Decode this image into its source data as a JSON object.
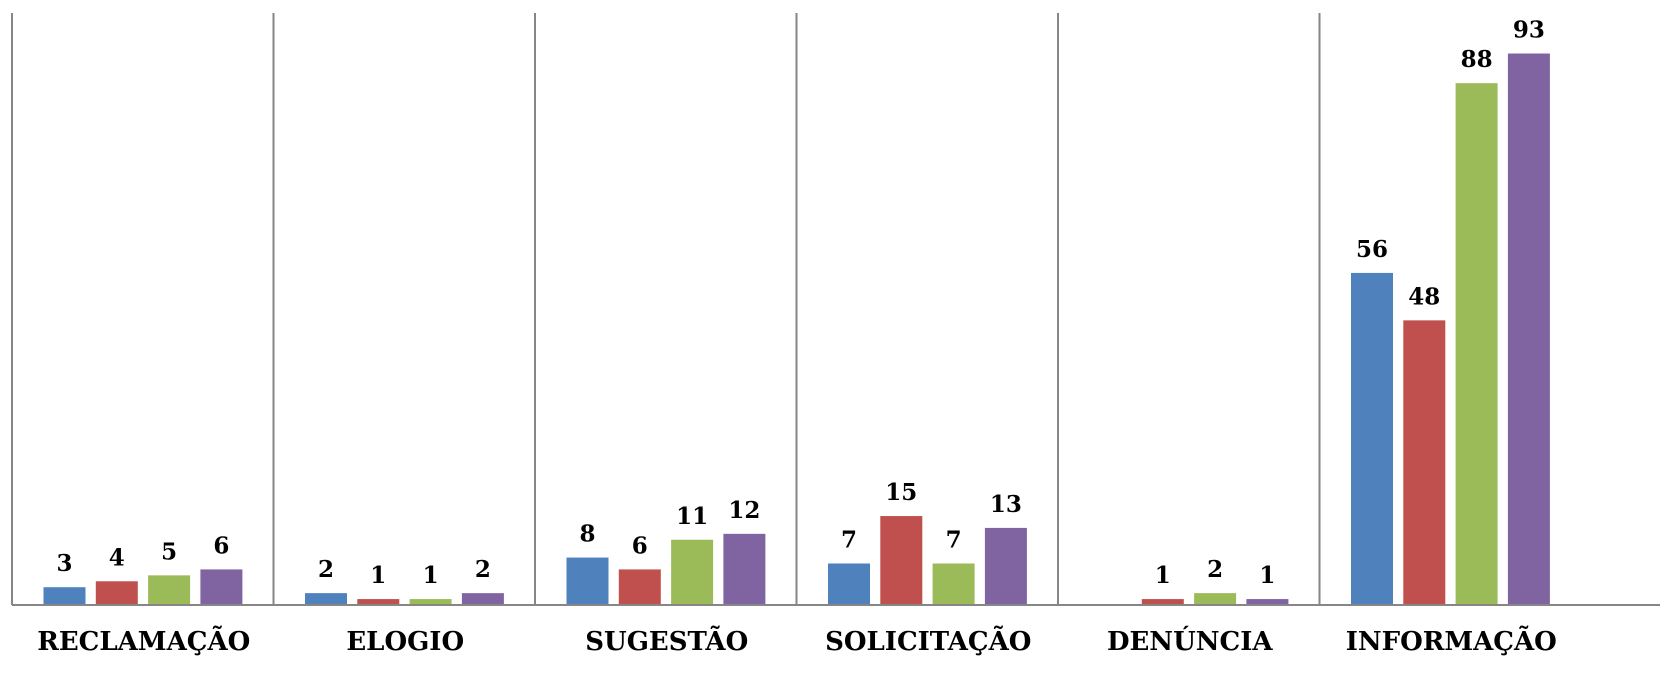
{
  "chart_data": {
    "type": "bar",
    "title": "",
    "xlabel": "",
    "ylabel": "",
    "categories": [
      "RECLAMAÇÃO",
      "ELOGIO",
      "SUGESTÃO",
      "SOLICITAÇÃO",
      "DENÚNCIA",
      "INFORMAÇÃO"
    ],
    "series": [
      {
        "color": "#4F81BD",
        "values": [
          3,
          2,
          8,
          7,
          null,
          56
        ]
      },
      {
        "color": "#C0504D",
        "values": [
          4,
          1,
          6,
          15,
          1,
          48
        ]
      },
      {
        "color": "#9BBB59",
        "values": [
          5,
          1,
          11,
          7,
          2,
          88
        ]
      },
      {
        "color": "#8064A2",
        "values": [
          6,
          2,
          12,
          13,
          1,
          93
        ]
      }
    ],
    "ylim": [
      0,
      100
    ],
    "grid": false,
    "legend": "none",
    "axis_color": "#868686"
  }
}
